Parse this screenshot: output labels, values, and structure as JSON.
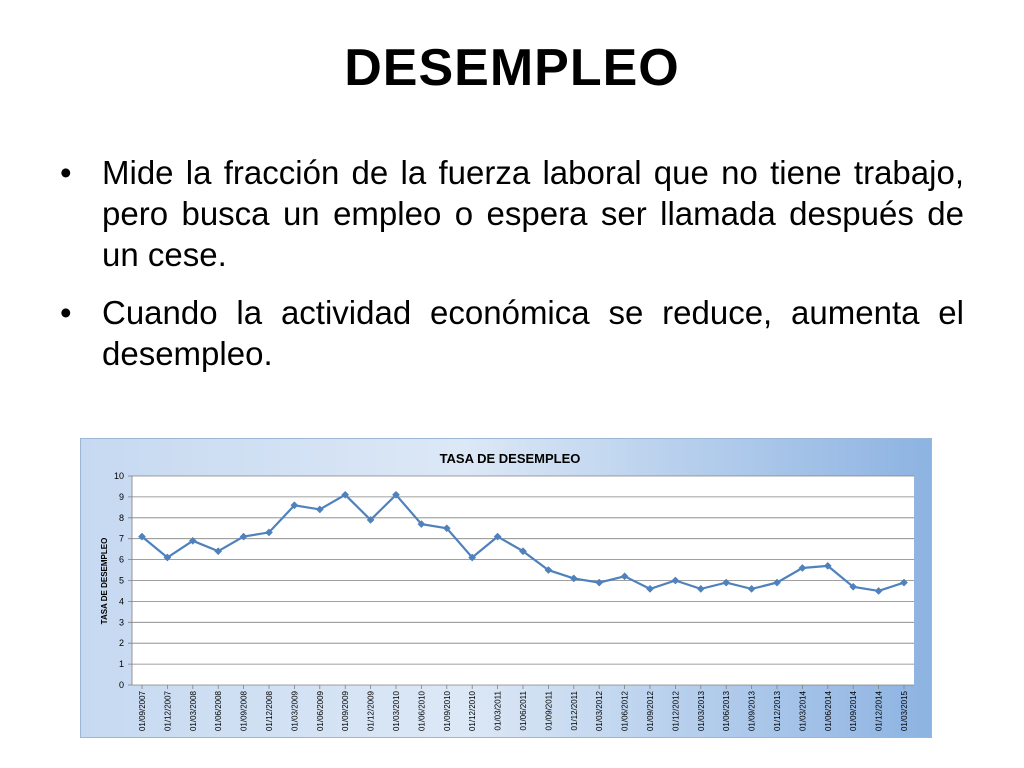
{
  "slide": {
    "title": "DESEMPLEO",
    "bullets": [
      "Mide la fracción de la fuerza laboral que no tiene trabajo, pero busca un empleo o espera ser llamada después de un cese.",
      "Cuando la actividad económica se reduce, aumenta el desempleo."
    ]
  },
  "chart_data": {
    "type": "line",
    "title": "TASA DE DESEMPLEO",
    "xlabel": "",
    "ylabel": "TASA DE DESEMPLEO",
    "ylim": [
      0,
      10
    ],
    "yticks": [
      0,
      1,
      2,
      3,
      4,
      5,
      6,
      7,
      8,
      9,
      10
    ],
    "grid": true,
    "legend": "none",
    "categories": [
      "01/09/2007",
      "01/12/2007",
      "01/03/2008",
      "01/06/2008",
      "01/09/2008",
      "01/12/2008",
      "01/03/2009",
      "01/06/2009",
      "01/09/2009",
      "01/12/2009",
      "01/03/2010",
      "01/06/2010",
      "01/09/2010",
      "01/12/2010",
      "01/03/2011",
      "01/06/2011",
      "01/09/2011",
      "01/12/2011",
      "01/03/2012",
      "01/06/2012",
      "01/09/2012",
      "01/12/2012",
      "01/03/2013",
      "01/06/2013",
      "01/09/2013",
      "01/12/2013",
      "01/03/2014",
      "01/06/2014",
      "01/09/2014",
      "01/12/2014",
      "01/03/2015"
    ],
    "series": [
      {
        "values": [
          7.1,
          6.1,
          6.9,
          6.4,
          7.1,
          7.3,
          8.6,
          8.4,
          9.1,
          7.9,
          9.1,
          7.7,
          7.5,
          6.1,
          7.1,
          6.4,
          5.5,
          5.1,
          4.9,
          5.2,
          4.6,
          5.0,
          4.6,
          4.9,
          4.6,
          4.9,
          5.6,
          5.7,
          4.7,
          4.5,
          4.9
        ]
      }
    ],
    "colors": {
      "line": "#4F81BD",
      "marker": "#4F81BD",
      "background_gradient": [
        "#C6D9F1",
        "#8DB3E2"
      ],
      "plot_area": "#FFFFFF",
      "gridline": "#808080"
    }
  }
}
